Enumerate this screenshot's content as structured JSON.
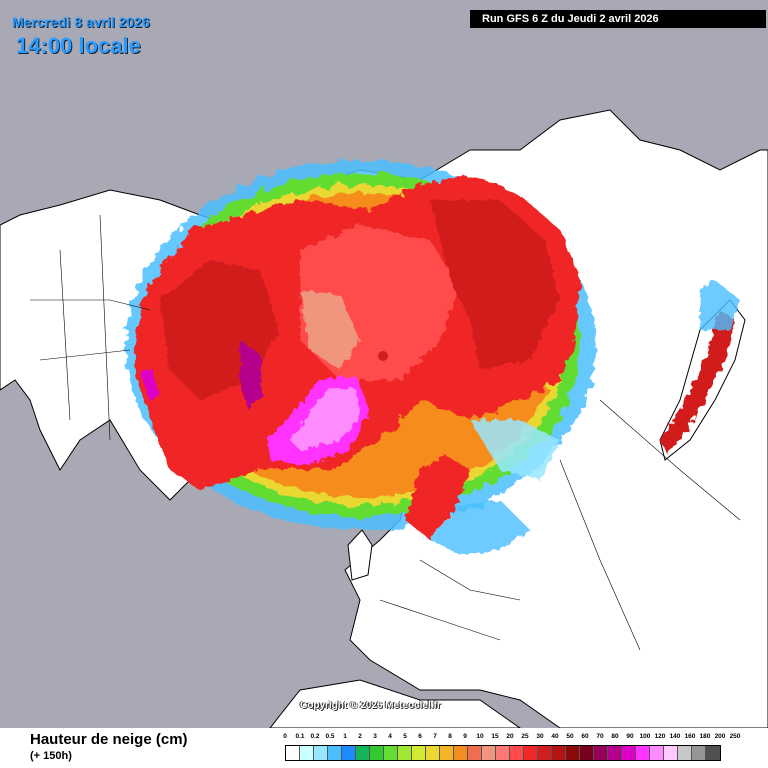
{
  "header": {
    "valid_date": "Mercredi 8 avril 2026",
    "local_time": "14:00 locale",
    "run_info": "Run GFS 6 Z du Jeudi 2 avril 2026"
  },
  "map": {
    "projection": "polar-stereographic north",
    "variable": "Hauteur de neige (cm)",
    "lead_time": "(+ 150h)",
    "copyright": "Copyright © 2026 Meteociel.fr",
    "colors": {
      "ocean": "#a9a9b5",
      "land": "#ffffff",
      "coastline": "#000000"
    }
  },
  "legend": {
    "ticks": [
      "0",
      "0.1",
      "0.2",
      "0.5",
      "1",
      "2",
      "3",
      "4",
      "5",
      "6",
      "7",
      "8",
      "9",
      "10",
      "15",
      "20",
      "25",
      "30",
      "40",
      "50",
      "60",
      "70",
      "80",
      "90",
      "100",
      "120",
      "140",
      "160",
      "180",
      "200",
      "250"
    ],
    "colors": [
      "#ffffff",
      "#c8ffff",
      "#96e6ff",
      "#4bbeff",
      "#1e8cff",
      "#14b45a",
      "#32c832",
      "#64dc32",
      "#a0e632",
      "#d2eb32",
      "#ebd732",
      "#f5b428",
      "#f58c1e",
      "#f06e50",
      "#f0967e",
      "#ff7878",
      "#ff4b4b",
      "#f02828",
      "#d21e1e",
      "#b41414",
      "#8c0a0a",
      "#78001e",
      "#96005a",
      "#b4008c",
      "#dc00c8",
      "#ff32ff",
      "#ff8cff",
      "#ffc8ff",
      "#c8c8c8",
      "#969696",
      "#505050"
    ]
  }
}
